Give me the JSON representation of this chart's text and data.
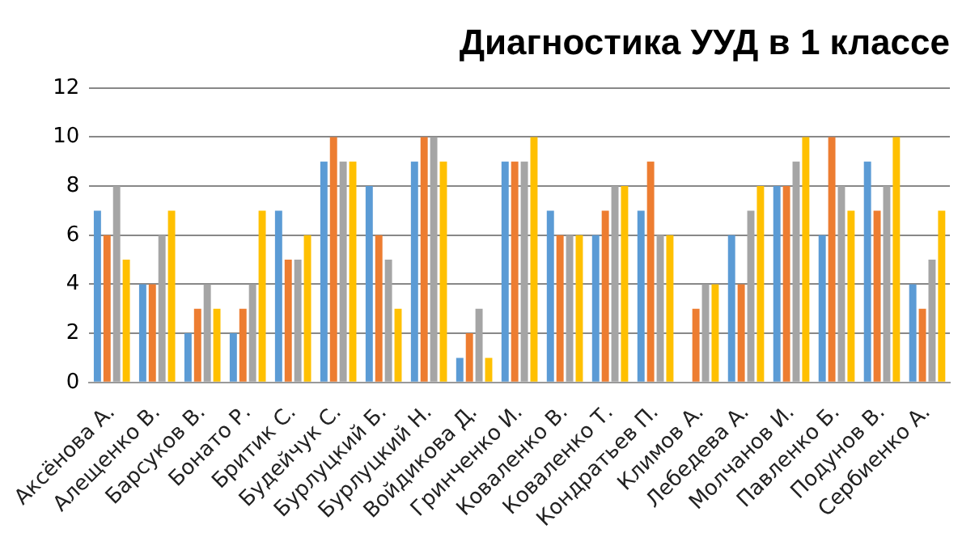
{
  "chart_data": {
    "type": "bar",
    "title": "Диагностика УУД в 1 классе",
    "categories": [
      "Аксёнова А.",
      "Алещенко В.",
      "Барсуков В.",
      "Бонато Р.",
      "Бритик С.",
      "Будейчук С.",
      "Бурлуцкий Б.",
      "Бурлуцкий Н.",
      "Войдикова Д.",
      "Гринченко И.",
      "Коваленко В.",
      "Коваленко Т.",
      "Кондратьев П.",
      "Климов А.",
      "Лебедева А.",
      "Молчанов И.",
      "Павленко Б.",
      "Подунов В.",
      "Сербиенко А."
    ],
    "series": [
      {
        "color": "#5b9bd5",
        "values": [
          7,
          4,
          2,
          2,
          7,
          9,
          8,
          9,
          1,
          9,
          7,
          6,
          7,
          0,
          6,
          8,
          6,
          9,
          4
        ]
      },
      {
        "color": "#ed7d31",
        "values": [
          6,
          4,
          3,
          3,
          5,
          10,
          6,
          10,
          2,
          9,
          6,
          7,
          9,
          3,
          4,
          8,
          10,
          7,
          3
        ]
      },
      {
        "color": "#a5a5a5",
        "values": [
          8,
          6,
          4,
          4,
          5,
          9,
          5,
          10,
          3,
          9,
          6,
          8,
          6,
          4,
          7,
          9,
          8,
          8,
          5
        ]
      },
      {
        "color": "#ffc000",
        "values": [
          5,
          7,
          3,
          7,
          6,
          9,
          3,
          9,
          1,
          10,
          6,
          8,
          6,
          4,
          8,
          10,
          7,
          10,
          7
        ]
      }
    ],
    "ylim": [
      0,
      12
    ],
    "yticks": [
      0,
      2,
      4,
      6,
      8,
      10,
      12
    ],
    "grid": "y",
    "legend": false
  }
}
